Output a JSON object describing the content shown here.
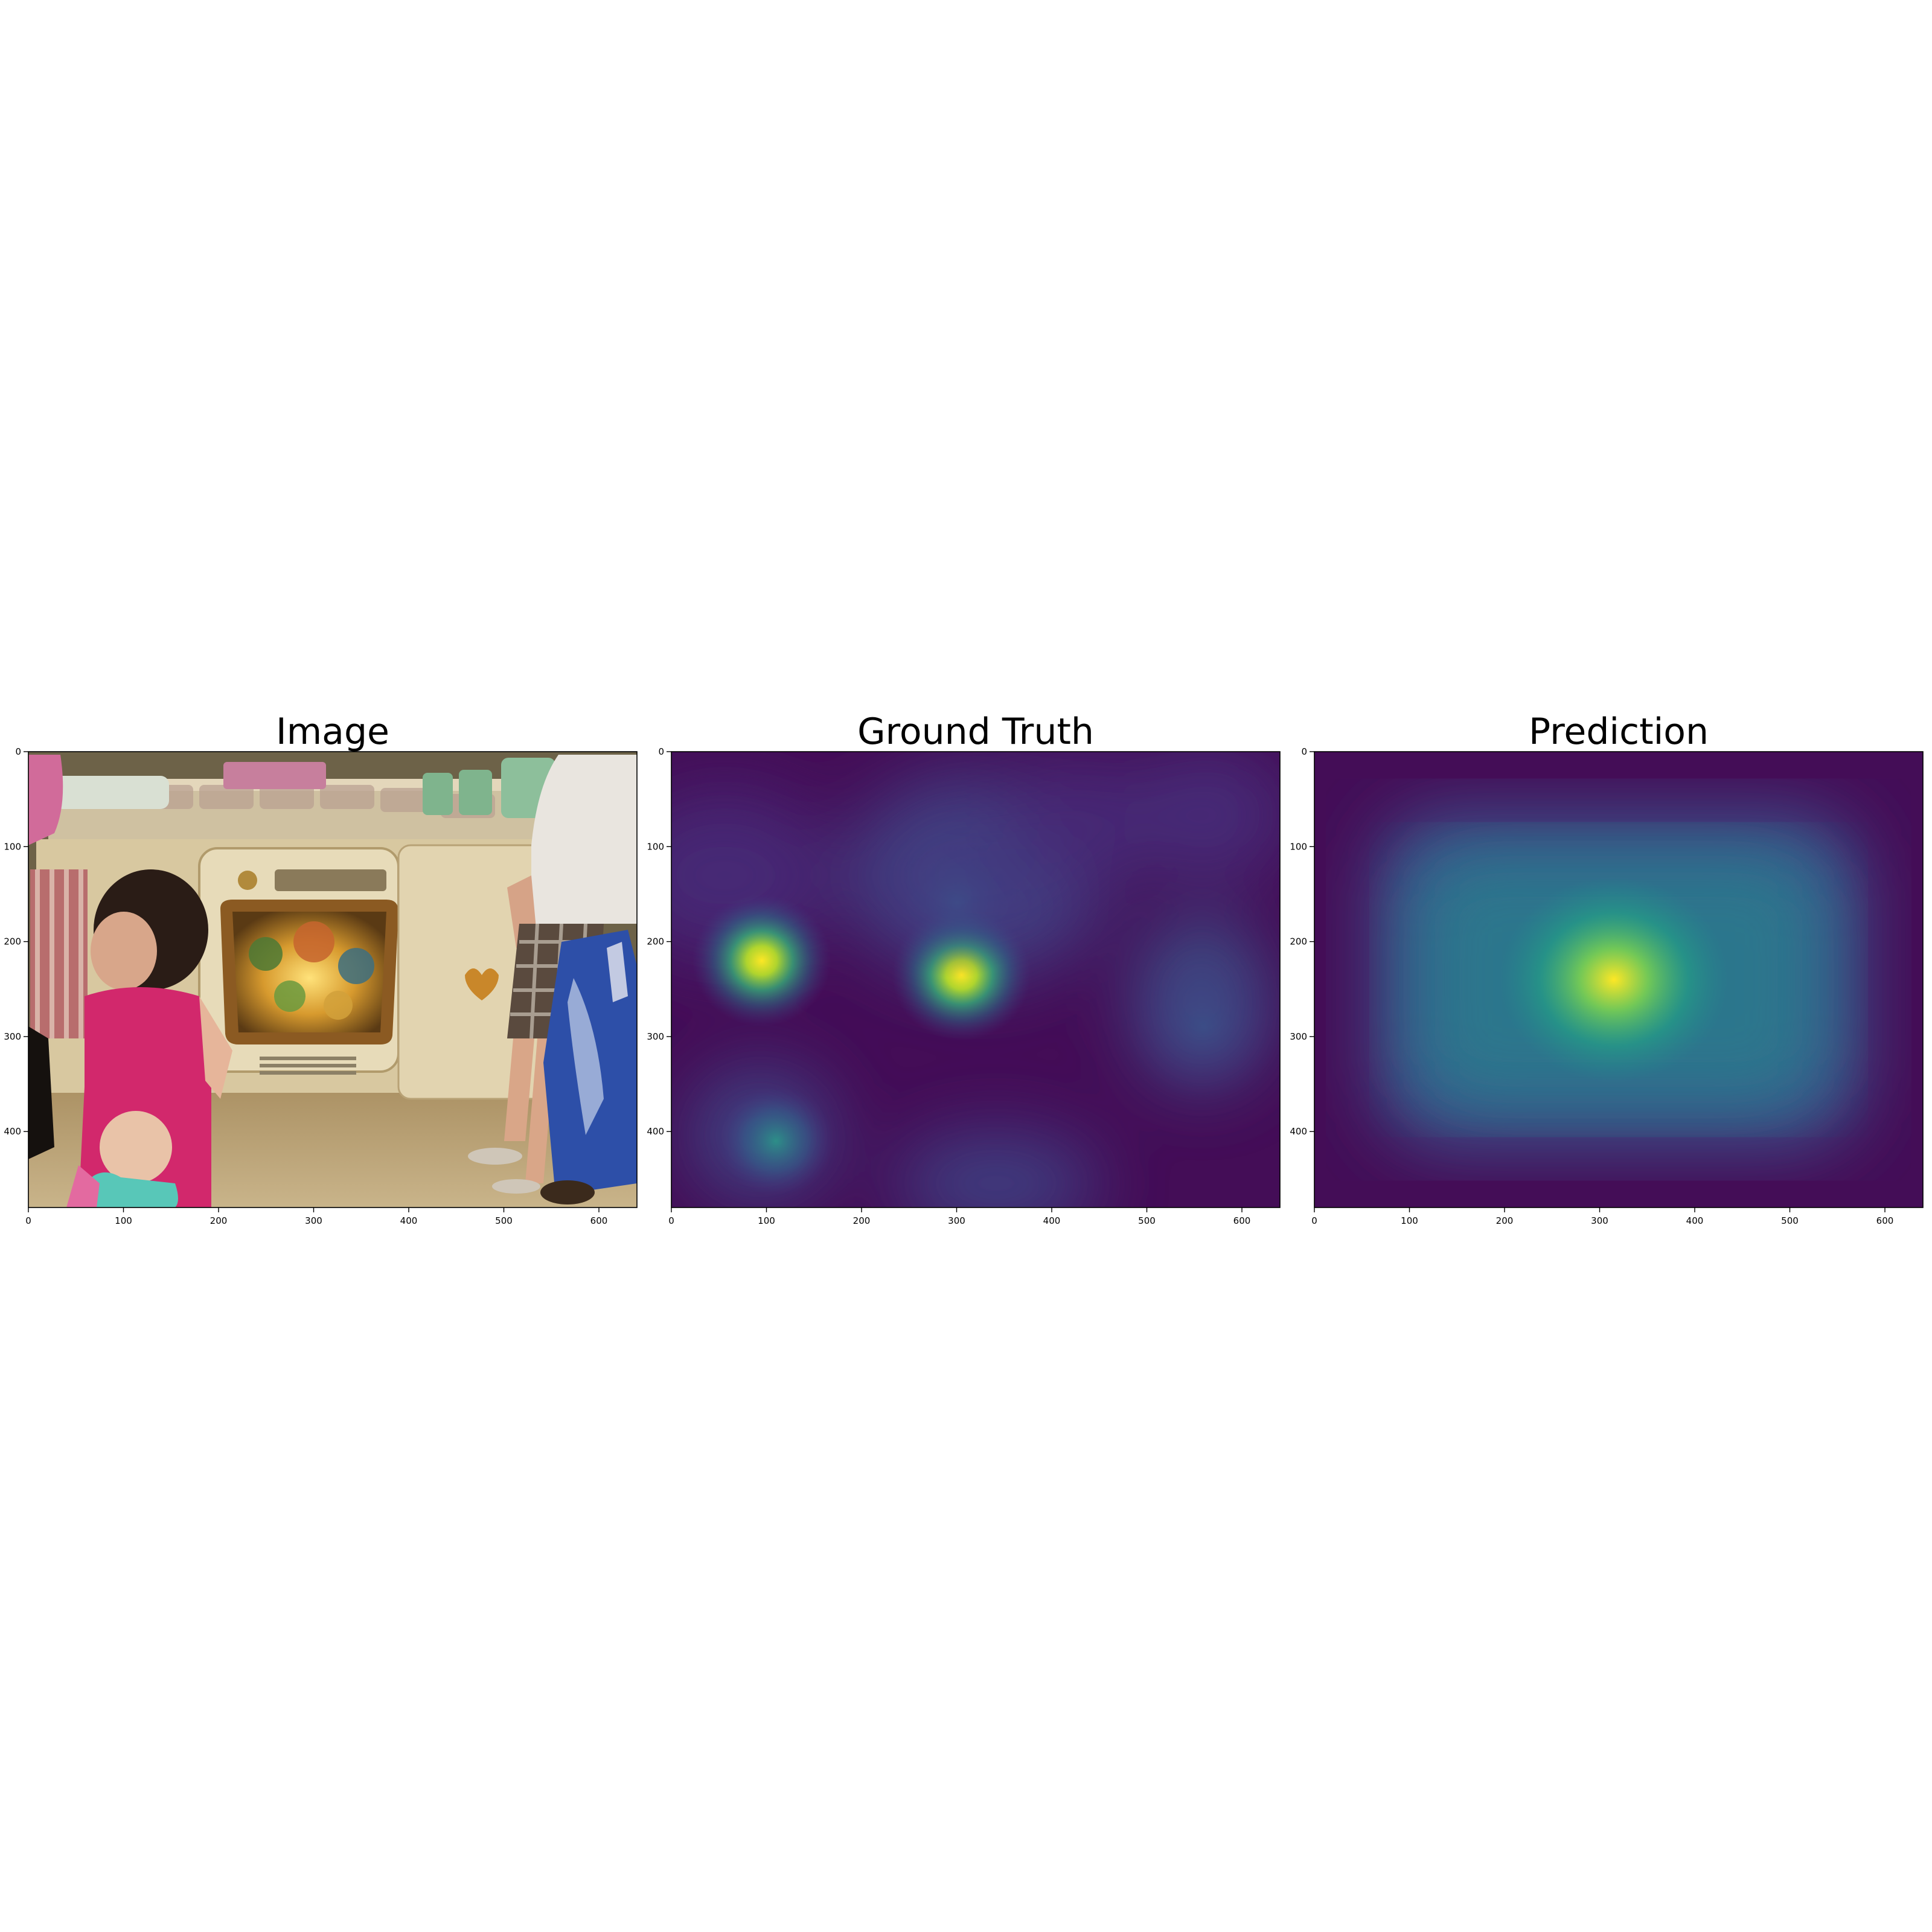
{
  "figure": {
    "panels": [
      {
        "title": "Image",
        "kind": "photo"
      },
      {
        "title": "Ground Truth",
        "kind": "heatmap"
      },
      {
        "title": "Prediction",
        "kind": "heatmap"
      }
    ]
  },
  "chart_data": [
    {
      "type": "heatmap",
      "title": "Image",
      "content": "photograph: child in pink shirt beside toy kitchen oven with illuminated window, adult standing at right",
      "xlim": [
        0,
        640
      ],
      "ylim": [
        480,
        0
      ],
      "xticks": [
        0,
        100,
        200,
        300,
        400,
        500,
        600
      ],
      "yticks": [
        0,
        100,
        200,
        300,
        400
      ]
    },
    {
      "type": "heatmap",
      "title": "Ground Truth",
      "colormap": "viridis",
      "xlim": [
        0,
        640
      ],
      "ylim": [
        480,
        0
      ],
      "xticks": [
        0,
        100,
        200,
        300,
        400,
        500,
        600
      ],
      "yticks": [
        0,
        100,
        200,
        300,
        400
      ],
      "peaks": [
        {
          "x": 95,
          "y": 220,
          "intensity": 1.0
        },
        {
          "x": 305,
          "y": 235,
          "intensity": 0.9
        },
        {
          "x": 110,
          "y": 410,
          "intensity": 0.4
        },
        {
          "x": 300,
          "y": 160,
          "intensity": 0.3
        },
        {
          "x": 560,
          "y": 290,
          "intensity": 0.2
        }
      ]
    },
    {
      "type": "heatmap",
      "title": "Prediction",
      "colormap": "viridis",
      "xlim": [
        0,
        640
      ],
      "ylim": [
        480,
        0
      ],
      "xticks": [
        0,
        100,
        200,
        300,
        400,
        500,
        600
      ],
      "yticks": [
        0,
        100,
        200,
        300,
        400
      ],
      "peaks": [
        {
          "x": 315,
          "y": 240,
          "intensity": 1.0
        }
      ]
    }
  ]
}
